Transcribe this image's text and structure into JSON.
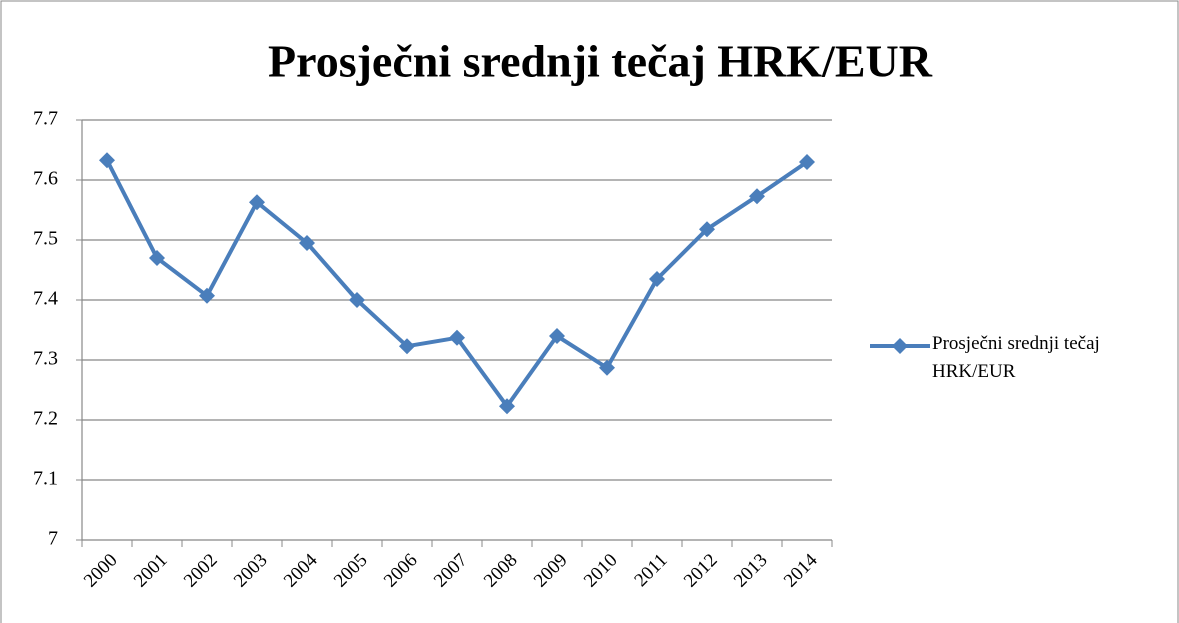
{
  "chart_data": {
    "type": "line",
    "title": "Prosječni srednji tečaj HRK/EUR",
    "categories": [
      "2000",
      "2001",
      "2002",
      "2003",
      "2004",
      "2005",
      "2006",
      "2007",
      "2008",
      "2009",
      "2010",
      "2011",
      "2012",
      "2013",
      "2014"
    ],
    "series": [
      {
        "name": "Prosječni srednji tečaj HRK/EUR",
        "color": "#4a7ebb",
        "values": [
          7.633,
          7.47,
          7.407,
          7.563,
          7.495,
          7.4,
          7.323,
          7.337,
          7.223,
          7.34,
          7.287,
          7.435,
          7.518,
          7.573,
          7.63
        ]
      }
    ],
    "ylim": [
      7,
      7.7
    ],
    "yticks": [
      7,
      7.1,
      7.2,
      7.3,
      7.4,
      7.5,
      7.6,
      7.7
    ],
    "grid": true,
    "legend": "right"
  }
}
